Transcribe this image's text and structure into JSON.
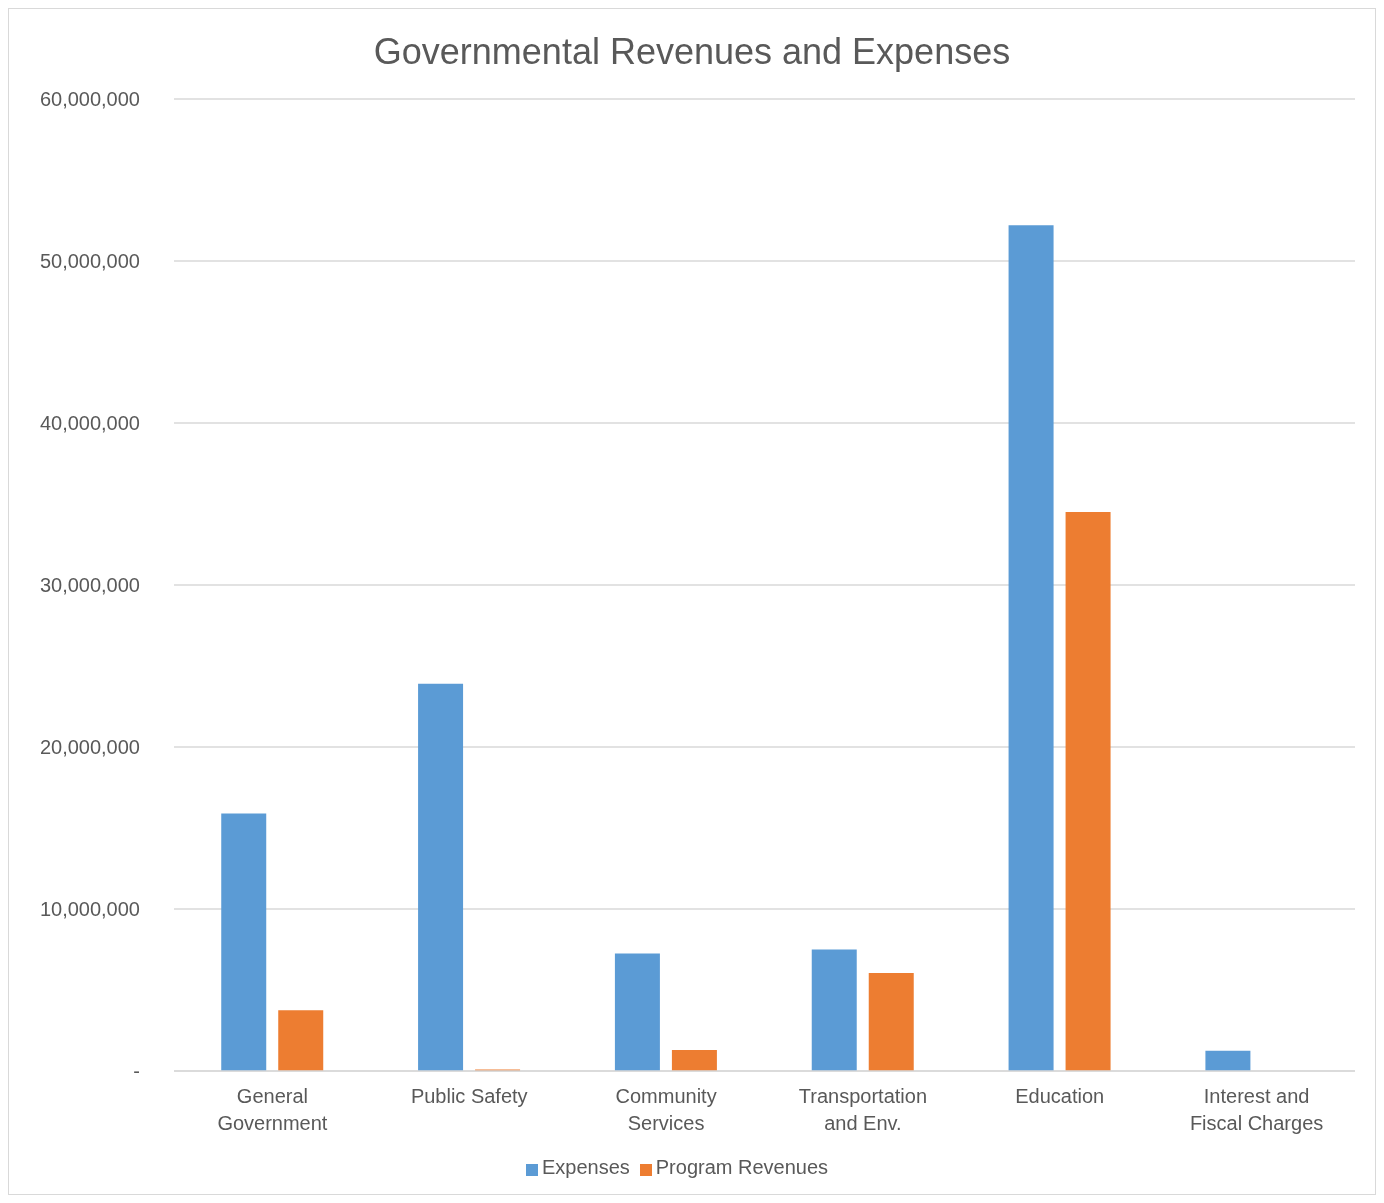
{
  "chart_data": {
    "type": "bar",
    "title": "Governmental Revenues and Expenses",
    "categories": [
      "General Government",
      "Public Safety",
      "Community Services",
      "Transportation and Env.",
      "Education",
      "Interest and Fiscal Charges"
    ],
    "series": [
      {
        "name": "Expenses",
        "color": "#5b9bd5",
        "values": [
          15900000,
          23900000,
          7250000,
          7500000,
          52200000,
          1250000
        ]
      },
      {
        "name": "Program Revenues",
        "color": "#ed7d31",
        "values": [
          3750000,
          100000,
          1300000,
          6050000,
          34500000,
          0
        ]
      }
    ],
    "ylim": [
      0,
      60000000
    ],
    "yticks": [
      {
        "value": 0,
        "label": "-"
      },
      {
        "value": 10000000,
        "label": "10,000,000"
      },
      {
        "value": 20000000,
        "label": "20,000,000"
      },
      {
        "value": 30000000,
        "label": "30,000,000"
      },
      {
        "value": 40000000,
        "label": "40,000,000"
      },
      {
        "value": 50000000,
        "label": "50,000,000"
      },
      {
        "value": 60000000,
        "label": "60,000,000"
      }
    ],
    "grid": "y",
    "legend": "bottom"
  }
}
